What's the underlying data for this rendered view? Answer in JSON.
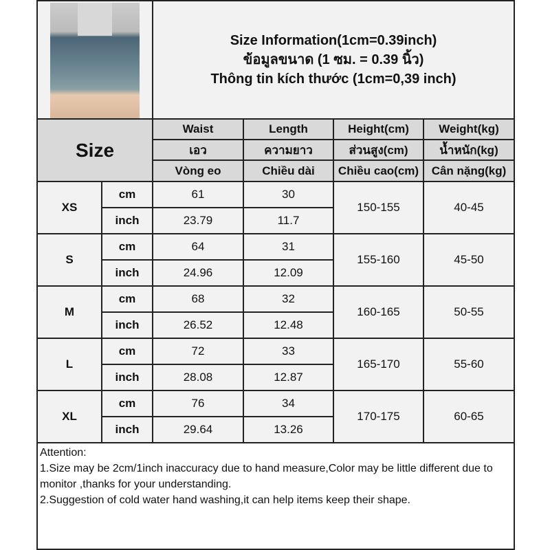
{
  "title": {
    "en": "Size Information(1cm=0.39inch)",
    "th": "ข้อมูลขนาด (1 ซม. = 0.39 นิ้ว)",
    "vi": "Thông tin kích thước (1cm=0,39 inch)"
  },
  "header": {
    "size": "Size",
    "cols": [
      [
        "Waist",
        "เอว",
        "Vòng eo"
      ],
      [
        "Length",
        "ความยาว",
        "Chiều dài"
      ],
      [
        "Height(cm)",
        "ส่วนสูง(cm)",
        "Chiều cao(cm)"
      ],
      [
        "Weight(kg)",
        "น้ำหนัก(kg)",
        "Cân nặng(kg)"
      ]
    ]
  },
  "units": {
    "cm": "cm",
    "inch": "inch"
  },
  "rows": [
    {
      "size": "XS",
      "waist_cm": "61",
      "length_cm": "30",
      "waist_in": "23.79",
      "length_in": "11.7",
      "height": "150-155",
      "weight": "40-45"
    },
    {
      "size": "S",
      "waist_cm": "64",
      "length_cm": "31",
      "waist_in": "24.96",
      "length_in": "12.09",
      "height": "155-160",
      "weight": "45-50"
    },
    {
      "size": "M",
      "waist_cm": "68",
      "length_cm": "32",
      "waist_in": "26.52",
      "length_in": "12.48",
      "height": "160-165",
      "weight": "50-55"
    },
    {
      "size": "L",
      "waist_cm": "72",
      "length_cm": "33",
      "waist_in": "28.08",
      "length_in": "12.87",
      "height": "165-170",
      "weight": "55-60"
    },
    {
      "size": "XL",
      "waist_cm": "76",
      "length_cm": "34",
      "waist_in": "29.64",
      "length_in": "13.26",
      "height": "170-175",
      "weight": "60-65"
    }
  ],
  "attention": [
    "Attention:",
    "1.Size may be 2cm/1inch inaccuracy due to hand measure,Color may be little different due to monitor ,thanks for your understanding.",
    "2.Suggestion of cold water hand washing,it can help items keep their shape."
  ]
}
